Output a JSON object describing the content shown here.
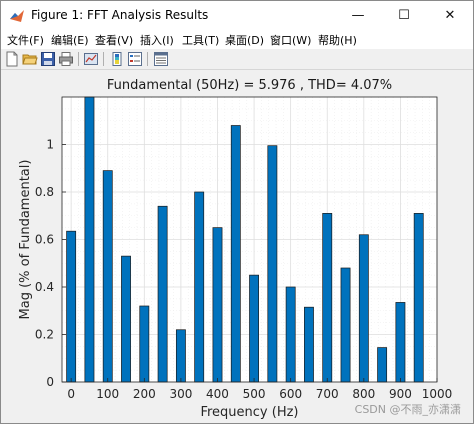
{
  "window": {
    "title": "Figure 1: FFT Analysis Results",
    "controls": {
      "minimize": "—",
      "maximize": "☐",
      "close": "✕"
    }
  },
  "menu": {
    "items": [
      "文件(F)",
      "编辑(E)",
      "查看(V)",
      "插入(I)",
      "工具(T)",
      "桌面(D)",
      "窗口(W)",
      "帮助(H)"
    ]
  },
  "toolbar": {
    "icons": [
      "new-figure-icon",
      "open-file-icon",
      "save-icon",
      "print-icon",
      "link-plot-icon",
      "colorbar-icon",
      "legend-icon",
      "property-inspector-icon"
    ]
  },
  "colors": {
    "bar": "#0072bd",
    "axes_bg": "#ffffff",
    "figure_bg": "#f0f0f0"
  },
  "chart_data": {
    "type": "bar",
    "title": "Fundamental (50Hz) = 5.976 , THD= 4.07%",
    "xlabel": "Frequency (Hz)",
    "ylabel": "Mag (% of Fundamental)",
    "x": [
      0,
      50,
      100,
      150,
      200,
      250,
      300,
      350,
      400,
      450,
      500,
      550,
      600,
      650,
      700,
      750,
      800,
      850,
      900,
      950
    ],
    "values": [
      0.635,
      1.2,
      0.89,
      0.53,
      0.32,
      0.74,
      0.22,
      0.8,
      0.65,
      1.08,
      0.45,
      0.995,
      0.4,
      0.315,
      0.71,
      0.48,
      0.62,
      0.145,
      0.335,
      0.71
    ],
    "xlim": [
      -25,
      1000
    ],
    "ylim": [
      0,
      1.2
    ],
    "xticks": [
      "0",
      "100",
      "200",
      "300",
      "400",
      "500",
      "600",
      "700",
      "800",
      "900",
      "1000"
    ],
    "yticks": [
      "0",
      "0.2",
      "0.4",
      "0.6",
      "0.8",
      "1"
    ],
    "grid": true,
    "minor_grid": true
  },
  "watermark": "CSDN @不雨_亦潇潇"
}
